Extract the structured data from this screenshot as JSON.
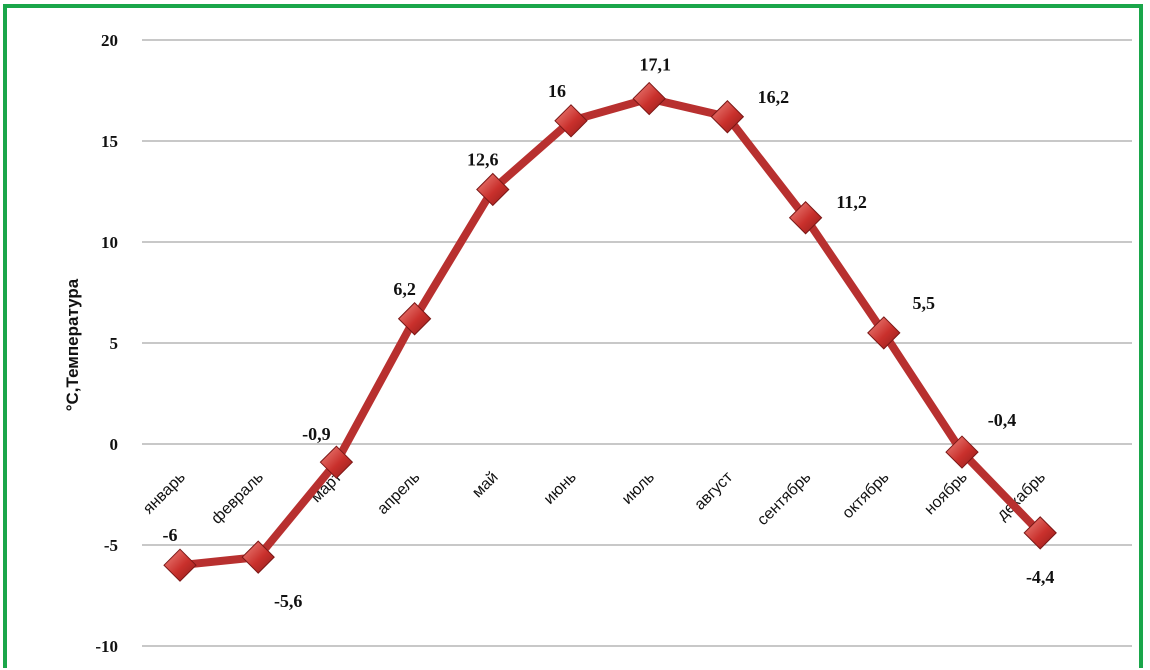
{
  "chart_data": {
    "type": "line",
    "ylabel": "°С,Температура",
    "xlabel": "",
    "title": "",
    "ylim": [
      -10,
      20
    ],
    "yticks": [
      20,
      15,
      10,
      5,
      0,
      -5,
      -10
    ],
    "ytick_labels": [
      "20",
      "15",
      "10",
      "5",
      "0",
      "-5",
      "-10"
    ],
    "grid": "horizontal",
    "legend": "none",
    "categories": [
      "январь",
      "февраль",
      "март",
      "апрель",
      "май",
      "июнь",
      "июль",
      "август",
      "сентябрь",
      "октябрь",
      "ноябрь",
      "декабрь"
    ],
    "series": [
      {
        "values": [
          -6,
          -5.6,
          -0.9,
          6.2,
          12.6,
          16,
          17.1,
          16.2,
          11.2,
          5.5,
          -0.4,
          -4.4
        ],
        "data_labels": [
          "-6",
          "-5,6",
          "-0,9",
          "6,2",
          "12,6",
          "16",
          "17,1",
          "16,2",
          "11,2",
          "5,5",
          "-0,4",
          "-4,4"
        ]
      }
    ],
    "colors": {
      "line": "#b8302f",
      "marker": "#c9302c",
      "marker_light": "#e8675f",
      "grid": "#a6a6a6",
      "frame": "#1aa64a"
    }
  }
}
